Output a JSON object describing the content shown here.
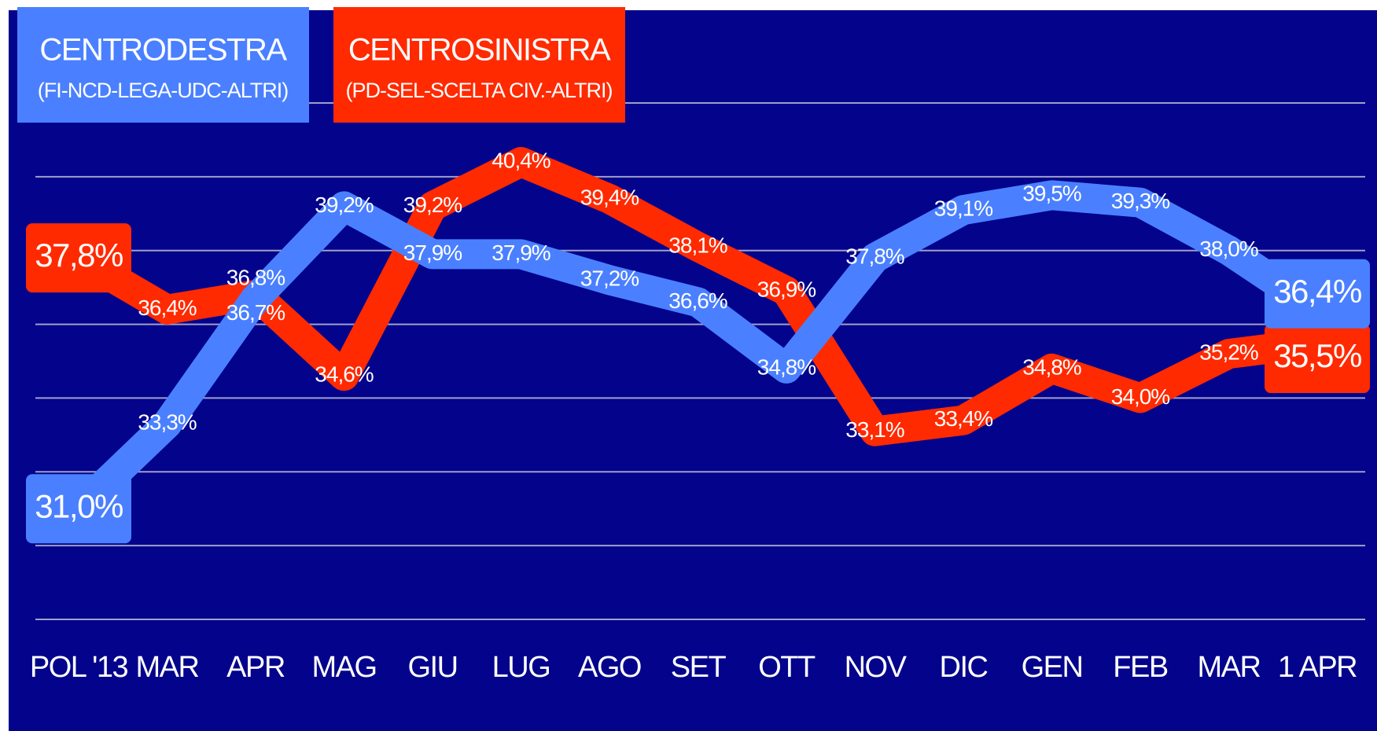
{
  "chart_data": {
    "type": "line",
    "categories": [
      "POL '13",
      "MAR",
      "APR",
      "MAG",
      "GIU",
      "LUG",
      "AGO",
      "SET",
      "OTT",
      "NOV",
      "DIC",
      "GEN",
      "FEB",
      "MAR",
      "1 APR"
    ],
    "series": [
      {
        "name": "CENTROSINISTRA",
        "subtitle": "(PD-SEL-SCELTA CIV.-ALTRI)",
        "color": "#ff2a00",
        "values": [
          37.8,
          36.4,
          36.8,
          34.6,
          39.2,
          40.4,
          39.4,
          38.1,
          36.9,
          33.1,
          33.4,
          34.8,
          34.0,
          35.2,
          35.5
        ],
        "value_labels": [
          "37,8%",
          "36,4%",
          "36,8%",
          "34,6%",
          "39,2%",
          "40,4%",
          "39,4%",
          "38,1%",
          "36,9%",
          "33,1%",
          "33,4%",
          "34,8%",
          "34,0%",
          "35,2%",
          "35,5%"
        ]
      },
      {
        "name": "CENTRODESTRA",
        "subtitle": "(FI-NCD-LEGA-UDC-ALTRI)",
        "color": "#4a80ff",
        "values": [
          31.0,
          33.3,
          36.7,
          39.2,
          37.9,
          37.9,
          37.2,
          36.6,
          34.8,
          37.8,
          39.1,
          39.5,
          39.3,
          38.0,
          36.4
        ],
        "value_labels": [
          "31,0%",
          "33,3%",
          "36,7%",
          "39,2%",
          "37,9%",
          "37,9%",
          "37,2%",
          "36,6%",
          "34,8%",
          "37,8%",
          "39,1%",
          "39,5%",
          "39,3%",
          "38,0%",
          "36,4%"
        ]
      }
    ],
    "ylim": [
      28,
      42
    ],
    "yticks": [
      28,
      30,
      32,
      34,
      36,
      38,
      40,
      42
    ],
    "grid": true
  }
}
